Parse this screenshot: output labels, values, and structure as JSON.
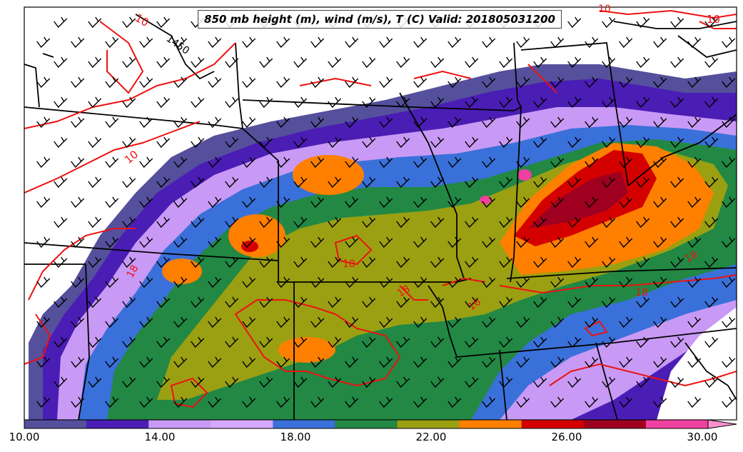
{
  "title": "850 mb height (m), wind (m/s), T (C) Valid: 201805031200",
  "colorbar": {
    "tick_labels": [
      "10.00",
      "14.00",
      "18.00",
      "22.00",
      "26.00",
      "30.00"
    ],
    "colors": [
      "#55509c",
      "#4a1db5",
      "#c89af5",
      "#d7a8ff",
      "#3a70d9",
      "#228844",
      "#9aa012",
      "#ff7f00",
      "#d40000",
      "#a00020",
      "#f040a0",
      "#ff90d0"
    ]
  },
  "contours": {
    "height_labels": [
      "1450"
    ],
    "temperature_labels": [
      "10",
      "10",
      "10",
      "10",
      "16",
      "18",
      "18",
      "18",
      "18",
      "18"
    ]
  },
  "colors": {
    "temperature_contour": "#ee1111",
    "height_contour": "#000000",
    "boundaries": "#000000"
  }
}
